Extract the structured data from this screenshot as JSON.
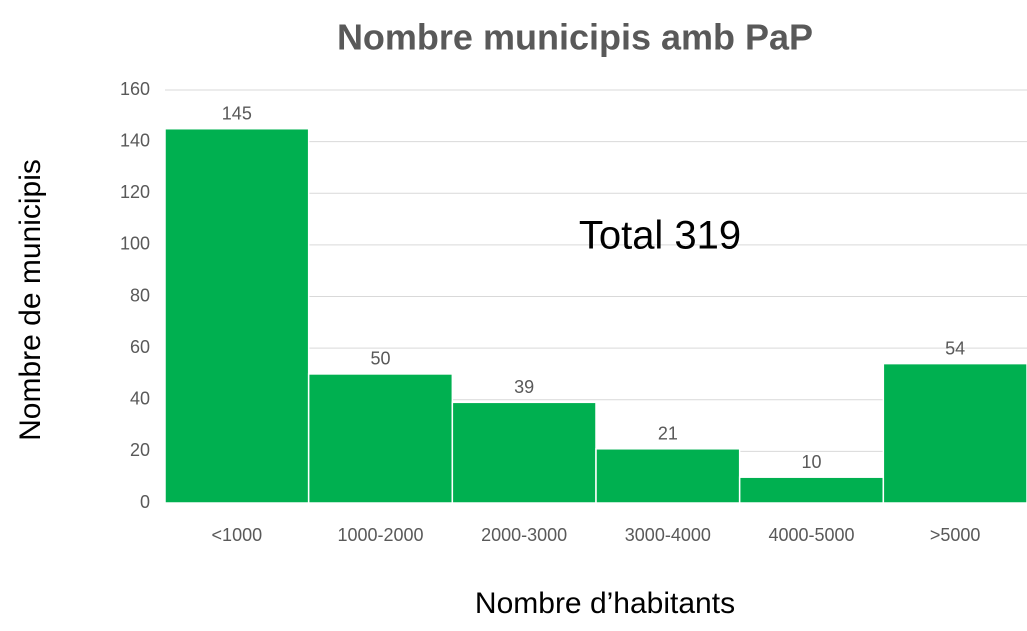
{
  "chart_data": {
    "type": "bar",
    "title": "Nombre municipis amb PaP",
    "x_label": "Nombre d’habitants",
    "y_label": "Nombre de municipis",
    "annotation": "Total 319",
    "categories": [
      "<1000",
      "1000-2000",
      "2000-3000",
      "3000-4000",
      "4000-5000",
      ">5000"
    ],
    "values": [
      145,
      50,
      39,
      21,
      10,
      54
    ],
    "color": "#00b050",
    "ylim": [
      0,
      160
    ],
    "yticks": [
      0,
      20,
      40,
      60,
      80,
      100,
      120,
      140,
      160
    ],
    "grid": true
  }
}
